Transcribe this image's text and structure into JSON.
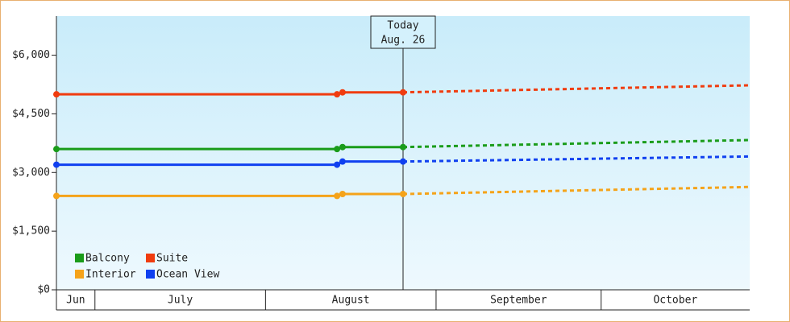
{
  "chart_data": {
    "type": "line",
    "x": [
      "Jun 24",
      "Aug 14",
      "Aug 15",
      "Aug 26",
      "Oct 28"
    ],
    "xlim": [
      "Jun 24",
      "Oct 28"
    ],
    "xticks": [
      {
        "value": "Jun 24",
        "label": "Jun"
      },
      {
        "value": "Jul 1",
        "label": "July"
      },
      {
        "value": "Aug 1",
        "label": "August"
      },
      {
        "value": "Sep 1",
        "label": "September"
      },
      {
        "value": "Oct 1",
        "label": "October"
      }
    ],
    "today": {
      "x": "Aug 26",
      "label": "Today",
      "date_label": "Aug. 26"
    },
    "series": [
      {
        "name": "Balcony",
        "color": "#1a9c1a",
        "values": [
          3600,
          3600,
          3650,
          3650,
          3830
        ]
      },
      {
        "name": "Suite",
        "color": "#f03c0f",
        "values": [
          5000,
          5000,
          5050,
          5050,
          5230
        ]
      },
      {
        "name": "Interior",
        "color": "#f5a31a",
        "values": [
          2400,
          2400,
          2450,
          2450,
          2630
        ]
      },
      {
        "name": "Ocean View",
        "color": "#1040f0",
        "values": [
          3200,
          3200,
          3280,
          3280,
          3410
        ]
      }
    ],
    "ylim": [
      0,
      7000
    ],
    "yticks": [
      {
        "value": 0,
        "label": "$0"
      },
      {
        "value": 1500,
        "label": "$1,500"
      },
      {
        "value": 3000,
        "label": "$3,000"
      },
      {
        "value": 4500,
        "label": "$4,500"
      },
      {
        "value": 6000,
        "label": "$6,000"
      }
    ],
    "legend": "bottom-left"
  }
}
